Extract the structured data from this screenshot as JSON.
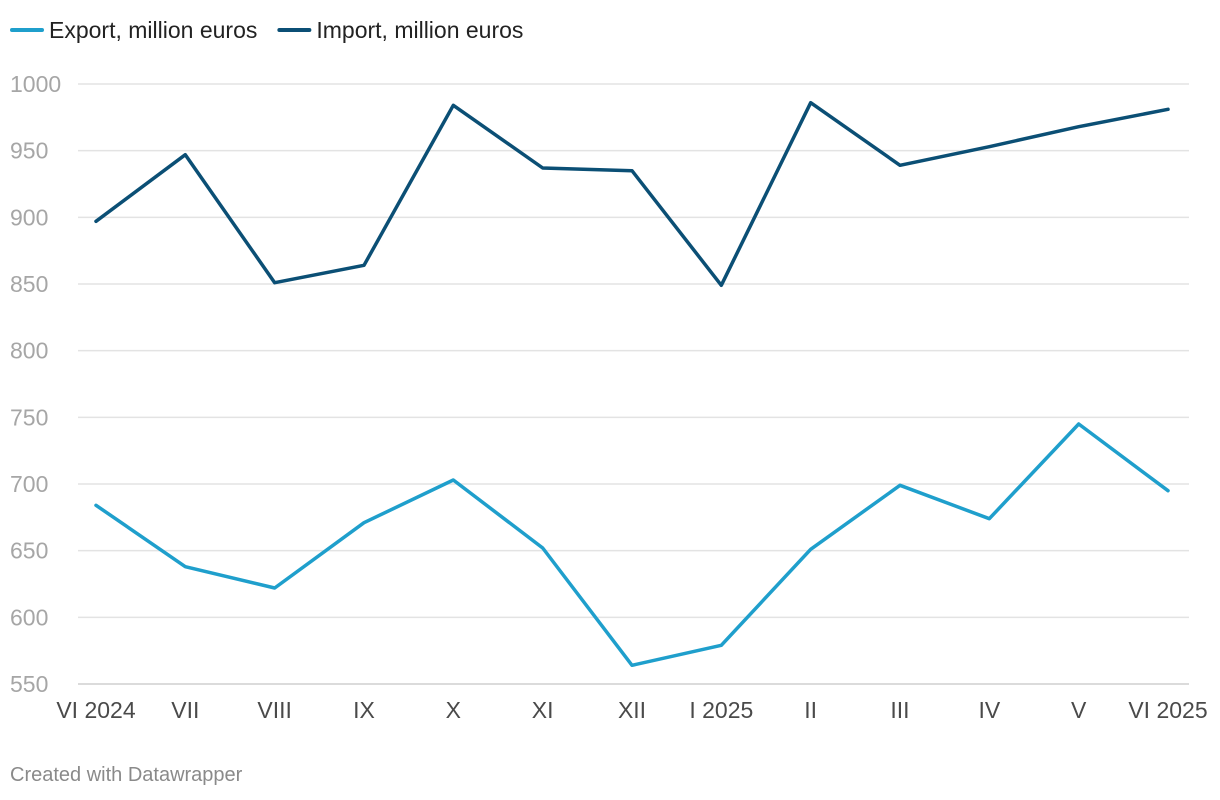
{
  "chart_data": {
    "type": "line",
    "categories": [
      "VI 2024",
      "VII",
      "VIII",
      "IX",
      "X",
      "XI",
      "XII",
      "I 2025",
      "II",
      "III",
      "IV",
      "V",
      "VI 2025"
    ],
    "series": [
      {
        "name": "Export, million euros",
        "color": "#1f9fcc",
        "values": [
          684,
          638,
          622,
          671,
          703,
          652,
          564,
          579,
          651,
          699,
          674,
          745,
          695
        ]
      },
      {
        "name": "Import, million euros",
        "color": "#0b4f75",
        "values": [
          897,
          947,
          851,
          864,
          984,
          937,
          935,
          849,
          986,
          939,
          953,
          968,
          981
        ]
      }
    ],
    "ylim": [
      550,
      1000
    ],
    "yticks": [
      550,
      600,
      650,
      700,
      750,
      800,
      850,
      900,
      950,
      1000
    ],
    "grid": true,
    "legend_position": "top-left",
    "title": "",
    "xlabel": "",
    "ylabel": ""
  },
  "footer": {
    "credit": "Created with Datawrapper"
  }
}
